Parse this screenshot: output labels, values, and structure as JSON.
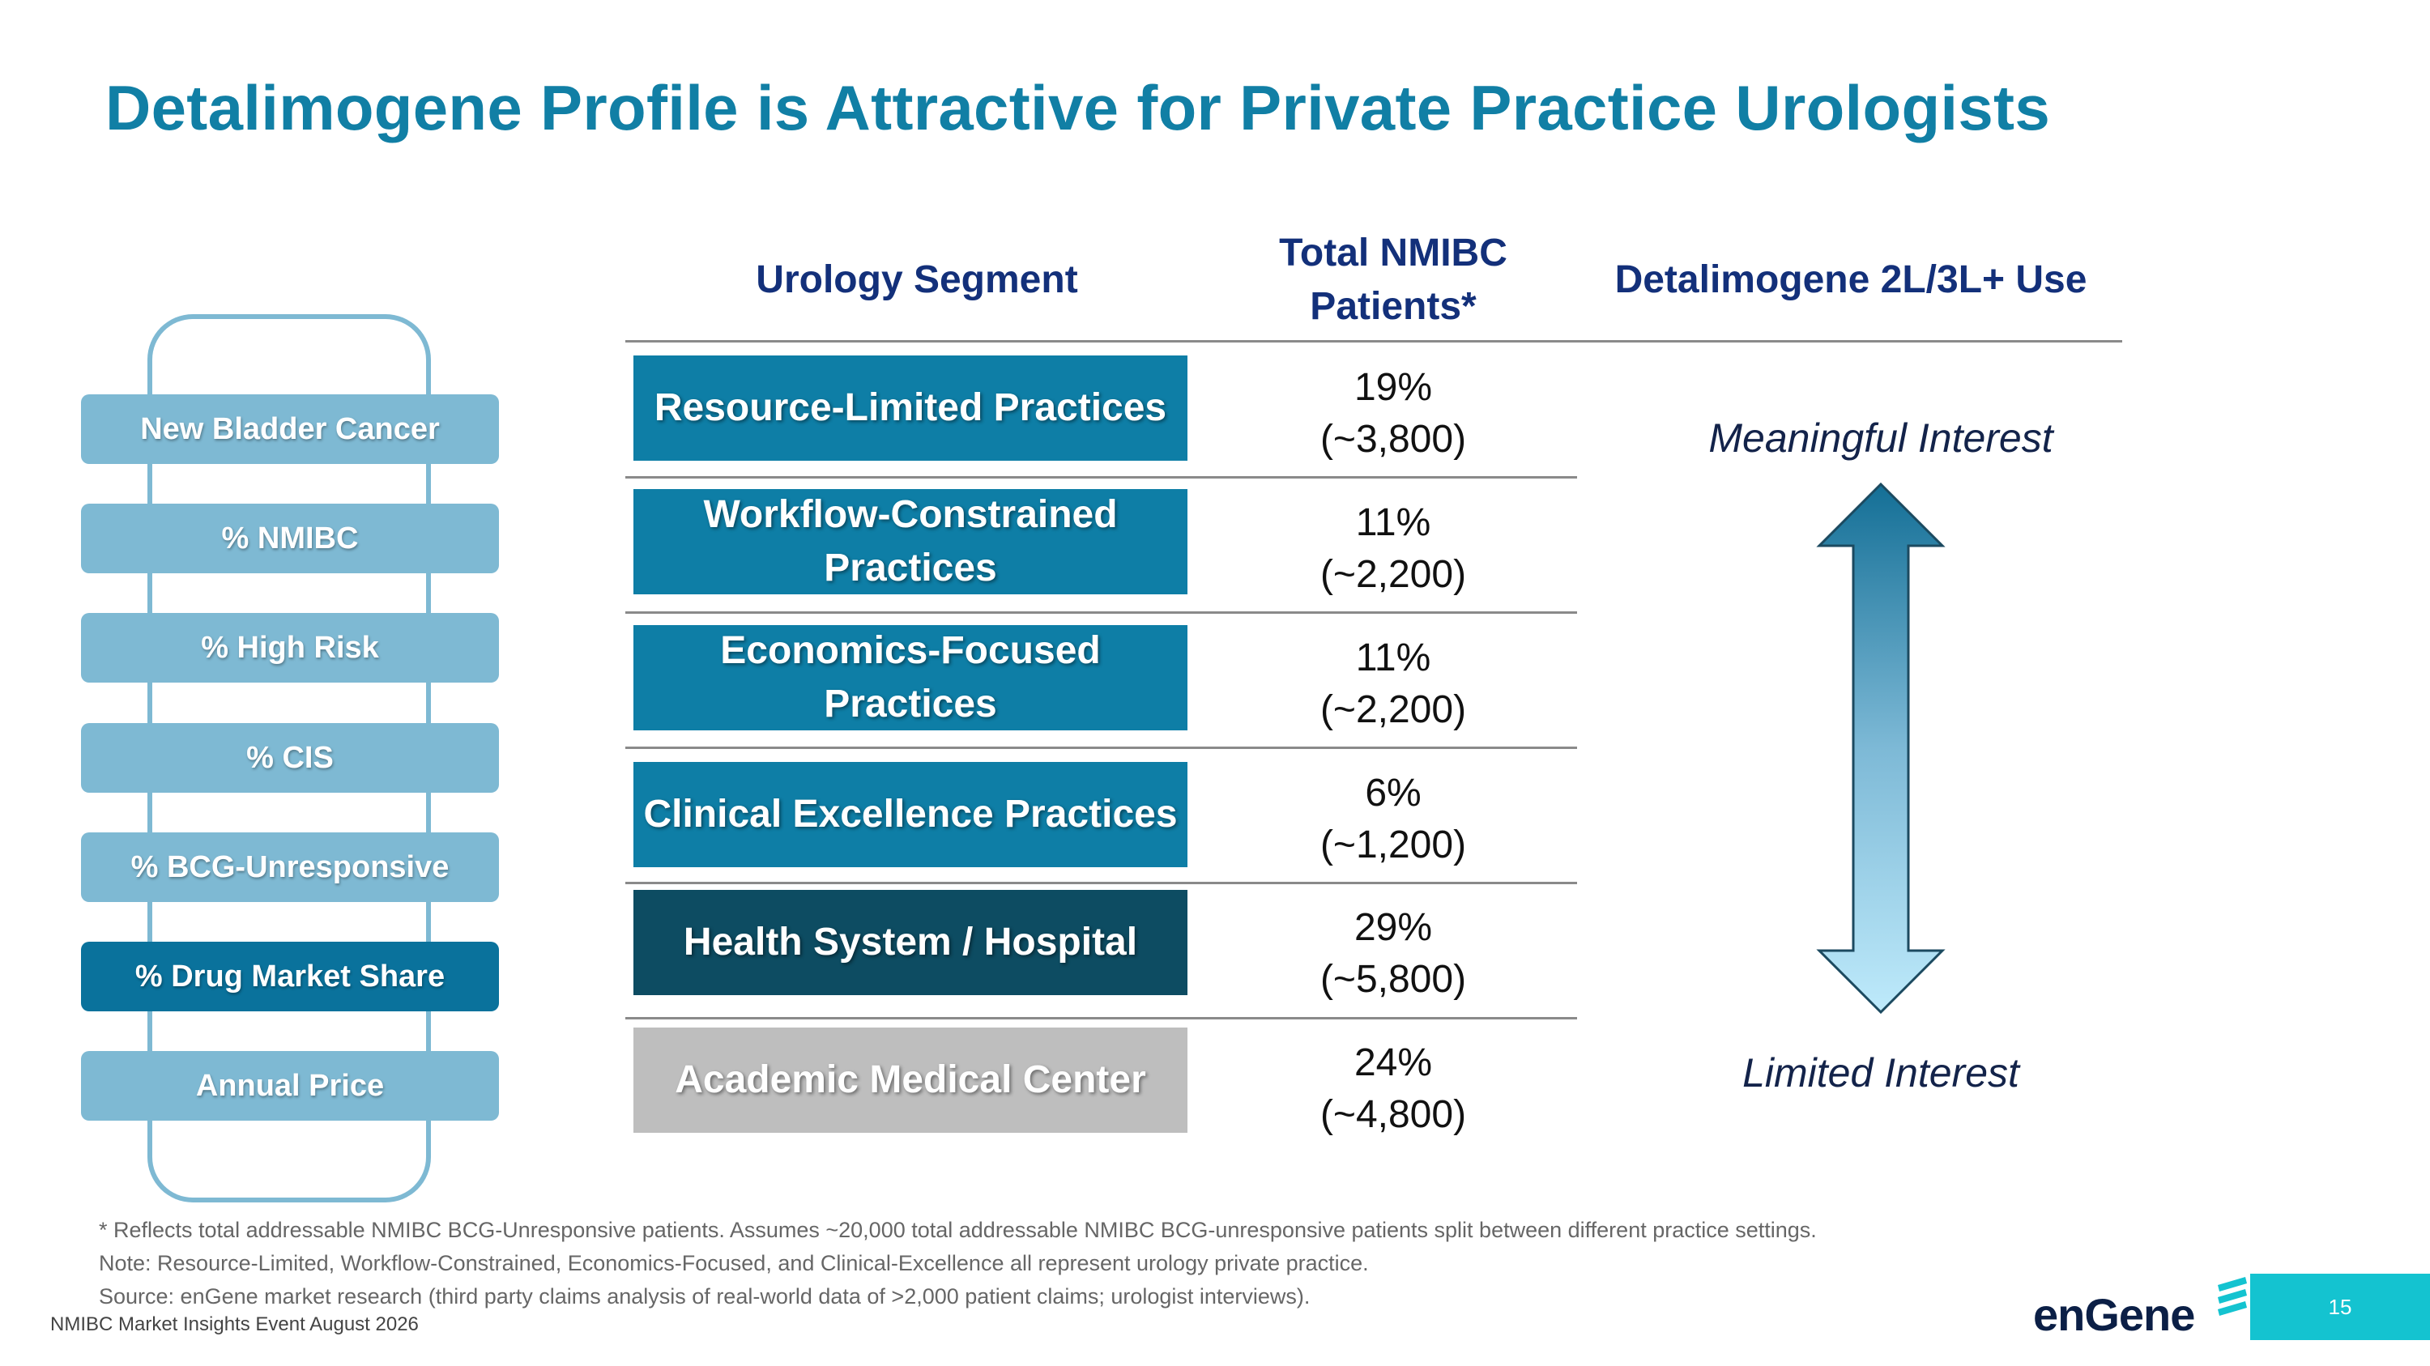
{
  "title": "Detalimogene Profile is Attractive for Private Practice Urologists",
  "funnel": [
    {
      "label": "New Bladder Cancer",
      "active": false
    },
    {
      "label": "% NMIBC",
      "active": false
    },
    {
      "label": "% High Risk",
      "active": false
    },
    {
      "label": "% CIS",
      "active": false
    },
    {
      "label": "% BCG-Unresponsive",
      "active": false
    },
    {
      "label": "% Drug Market Share",
      "active": true
    },
    {
      "label": "Annual Price",
      "active": false
    }
  ],
  "table": {
    "headers": {
      "segment": "Urology Segment",
      "patients": "Total NMIBC Patients*",
      "use": "Detalimogene 2L/3L+ Use"
    },
    "rows": [
      {
        "segment": "Resource-Limited Practices",
        "pct": "19%",
        "count": "(~3,800)",
        "color": "#0E7EA6"
      },
      {
        "segment": "Workflow-Constrained Practices",
        "pct": "11%",
        "count": "(~2,200)",
        "color": "#0E7EA6"
      },
      {
        "segment": "Economics-Focused Practices",
        "pct": "11%",
        "count": "(~2,200)",
        "color": "#0E7EA6"
      },
      {
        "segment": "Clinical Excellence Practices",
        "pct": "6%",
        "count": "(~1,200)",
        "color": "#0E7EA6"
      },
      {
        "segment": "Health System / Hospital",
        "pct": "29%",
        "count": "(~5,800)",
        "color": "#0D4C62"
      },
      {
        "segment": "Academic Medical Center",
        "pct": "24%",
        "count": "(~4,800)",
        "color": "#BEBEBE"
      }
    ]
  },
  "interest": {
    "high": "Meaningful Interest",
    "low": "Limited Interest"
  },
  "footnotes": [
    "* Reflects total addressable NMIBC BCG-Unresponsive patients. Assumes ~20,000 total addressable NMIBC BCG-unresponsive patients split between different practice settings.",
    "Note: Resource-Limited, Workflow-Constrained, Economics-Focused, and Clinical-Excellence all represent urology private practice.",
    "Source: enGene market research (third party claims analysis of real-world data of >2,000 patient claims; urologist interviews)."
  ],
  "event": "NMIBC Market Insights Event August 2026",
  "logo_text": "enGene",
  "page_number": "15"
}
